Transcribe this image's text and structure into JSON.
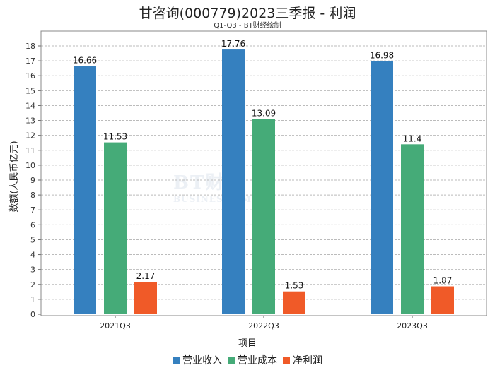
{
  "chart_data": {
    "type": "bar",
    "title": "甘咨询(000779)2023三季报 - 利润",
    "subtitle": "Q1-Q3 - BT财经绘制",
    "xlabel": "项目",
    "ylabel": "数额(人民币亿元)",
    "categories": [
      "2021Q3",
      "2022Q3",
      "2023Q3"
    ],
    "series": [
      {
        "name": "营业收入",
        "color": "#3580BF",
        "values": [
          16.66,
          17.76,
          16.98
        ]
      },
      {
        "name": "营业成本",
        "color": "#45AB78",
        "values": [
          11.53,
          13.09,
          11.4
        ]
      },
      {
        "name": "净利润",
        "color": "#F05A28",
        "values": [
          2.17,
          1.53,
          1.87
        ]
      }
    ],
    "ylim": [
      0,
      18
    ],
    "yticks": [
      0,
      1,
      2,
      3,
      4,
      5,
      6,
      7,
      8,
      9,
      10,
      11,
      12,
      13,
      14,
      15,
      16,
      17,
      18
    ],
    "grid": true,
    "legend": "bottom"
  },
  "watermark": {
    "line1": "BT财经",
    "line2": "BUSINESSTIMES"
  }
}
